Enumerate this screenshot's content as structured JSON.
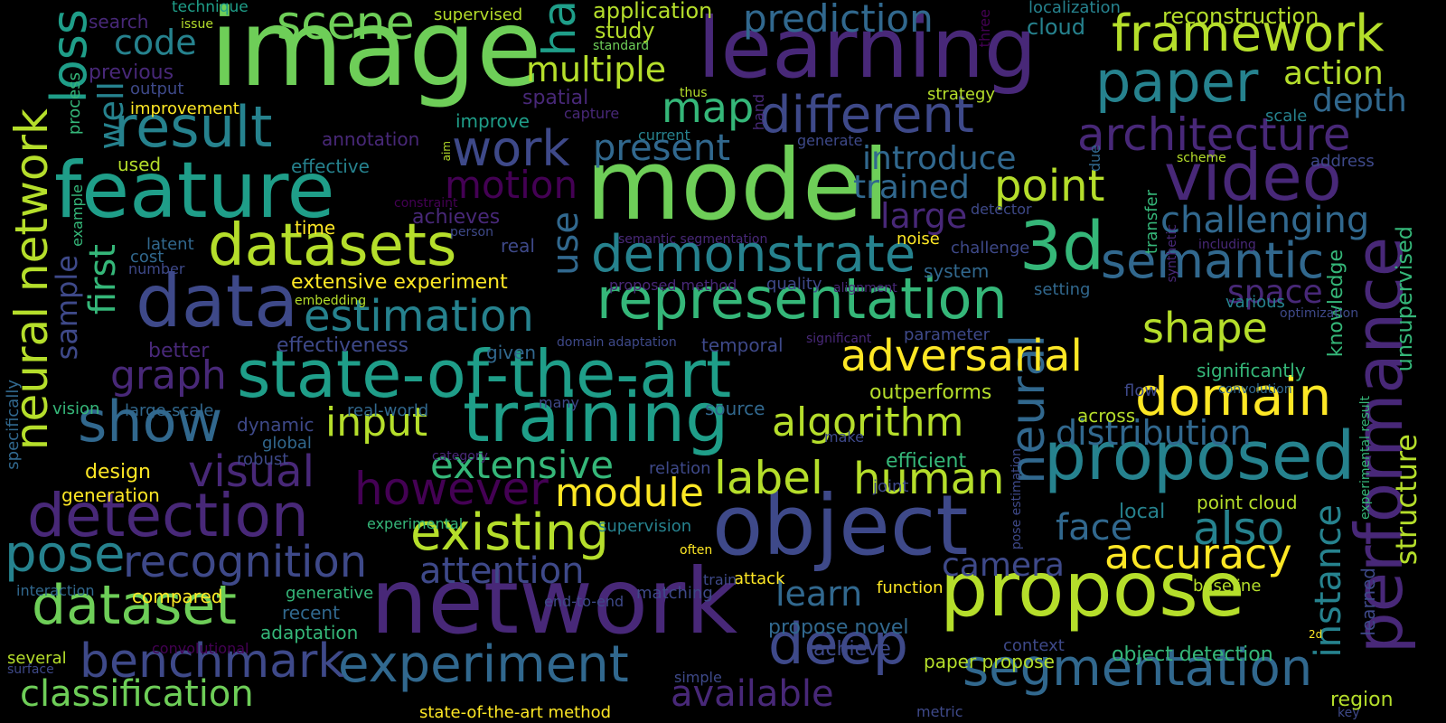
{
  "background": "#000000",
  "palette": [
    "#440154",
    "#482878",
    "#3e4989",
    "#31688e",
    "#26828e",
    "#1f9e89",
    "#35b779",
    "#6ece58",
    "#b5de2b",
    "#fde725"
  ],
  "words": [
    {
      "id": "image",
      "text": "image",
      "color": "#6ece58"
    },
    {
      "id": "model",
      "text": "model",
      "color": "#6ece58"
    },
    {
      "id": "learning",
      "text": "learning",
      "color": "#482878"
    },
    {
      "id": "network",
      "text": "network",
      "color": "#482878"
    },
    {
      "id": "feature",
      "text": "feature",
      "color": "#1f9e89"
    },
    {
      "id": "object",
      "text": "object",
      "color": "#3e4989"
    },
    {
      "id": "propose",
      "text": "propose",
      "color": "#b5de2b"
    },
    {
      "id": "performance",
      "text": "performance",
      "color": "#482878"
    },
    {
      "id": "video",
      "text": "video",
      "color": "#482878"
    },
    {
      "id": "data",
      "text": "data",
      "color": "#3e4989"
    },
    {
      "id": "state-of-the-art",
      "text": "state-of-the-art",
      "color": "#1f9e89"
    },
    {
      "id": "training",
      "text": "training",
      "color": "#1f9e89"
    },
    {
      "id": "representation",
      "text": "representation",
      "color": "#35b779"
    },
    {
      "id": "detection",
      "text": "detection",
      "color": "#482878"
    },
    {
      "id": "datasets",
      "text": "datasets",
      "color": "#b5de2b"
    },
    {
      "id": "proposed",
      "text": "proposed",
      "color": "#26828e"
    },
    {
      "id": "3d",
      "text": "3d",
      "color": "#35b779"
    },
    {
      "id": "segmentation",
      "text": "segmentation",
      "color": "#31688e"
    },
    {
      "id": "experiment",
      "text": "experiment",
      "color": "#31688e"
    },
    {
      "id": "deep",
      "text": "deep",
      "color": "#3e4989"
    },
    {
      "id": "domain",
      "text": "domain",
      "color": "#fde725"
    },
    {
      "id": "demonstrate",
      "text": "demonstrate",
      "color": "#26828e"
    },
    {
      "id": "show",
      "text": "show",
      "color": "#31688e"
    },
    {
      "id": "result",
      "text": "result",
      "color": "#26828e"
    },
    {
      "id": "paper",
      "text": "paper",
      "color": "#26828e"
    },
    {
      "id": "dataset",
      "text": "dataset",
      "color": "#6ece58"
    },
    {
      "id": "scene",
      "text": "scene",
      "color": "#6ece58"
    },
    {
      "id": "framework",
      "text": "framework",
      "color": "#b5de2b"
    },
    {
      "id": "different",
      "text": "different",
      "color": "#3e4989"
    },
    {
      "id": "semantic",
      "text": "semantic",
      "color": "#31688e"
    },
    {
      "id": "neural-network",
      "text": "neural network",
      "color": "#b5de2b"
    },
    {
      "id": "neural",
      "text": "neural",
      "color": "#31688e"
    },
    {
      "id": "existing",
      "text": "existing",
      "color": "#b5de2b"
    },
    {
      "id": "pose",
      "text": "pose",
      "color": "#26828e"
    },
    {
      "id": "recognition",
      "text": "recognition",
      "color": "#3e4989"
    },
    {
      "id": "adversarial",
      "text": "adversarial",
      "color": "#fde725"
    },
    {
      "id": "benchmark",
      "text": "benchmark",
      "color": "#3e4989"
    },
    {
      "id": "architecture",
      "text": "architecture",
      "color": "#482878"
    },
    {
      "id": "estimation",
      "text": "estimation",
      "color": "#26828e"
    },
    {
      "id": "algorithm",
      "text": "algorithm",
      "color": "#b5de2b"
    },
    {
      "id": "human",
      "text": "human",
      "color": "#b5de2b"
    },
    {
      "id": "visual",
      "text": "visual",
      "color": "#482878"
    },
    {
      "id": "however",
      "text": "however",
      "color": "#440154"
    },
    {
      "id": "work",
      "text": "work",
      "color": "#3e4989"
    },
    {
      "id": "accuracy",
      "text": "accuracy",
      "color": "#fde725"
    },
    {
      "id": "classification",
      "text": "classification",
      "color": "#6ece58"
    },
    {
      "id": "challenging",
      "text": "challenging",
      "color": "#31688e"
    },
    {
      "id": "loss",
      "text": "loss",
      "color": "#1f9e89"
    },
    {
      "id": "prediction",
      "text": "prediction",
      "color": "#31688e"
    },
    {
      "id": "point",
      "text": "point",
      "color": "#b5de2b"
    },
    {
      "id": "shape",
      "text": "shape",
      "color": "#b5de2b"
    },
    {
      "id": "input",
      "text": "input",
      "color": "#b5de2b"
    },
    {
      "id": "label",
      "text": "label",
      "color": "#b5de2b"
    },
    {
      "id": "module",
      "text": "module",
      "color": "#fde725"
    },
    {
      "id": "extensive",
      "text": "extensive",
      "color": "#35b779"
    },
    {
      "id": "attention",
      "text": "attention",
      "color": "#3e4989"
    },
    {
      "id": "available",
      "text": "available",
      "color": "#482878"
    },
    {
      "id": "distribution",
      "text": "distribution",
      "color": "#31688e"
    },
    {
      "id": "instance",
      "text": "instance",
      "color": "#26828e"
    },
    {
      "id": "also",
      "text": "also",
      "color": "#26828e"
    },
    {
      "id": "face",
      "text": "face",
      "color": "#31688e"
    },
    {
      "id": "structure",
      "text": "structure",
      "color": "#b5de2b"
    },
    {
      "id": "unsupervised",
      "text": "unsupervised",
      "color": "#35b779"
    },
    {
      "id": "first",
      "text": "first",
      "color": "#35b779"
    },
    {
      "id": "ha",
      "text": "ha",
      "color": "#1f9e89"
    },
    {
      "id": "code",
      "text": "code",
      "color": "#26828e"
    },
    {
      "id": "multiple",
      "text": "multiple",
      "color": "#b5de2b"
    },
    {
      "id": "map",
      "text": "map",
      "color": "#35b779"
    },
    {
      "id": "present",
      "text": "present",
      "color": "#31688e"
    },
    {
      "id": "motion",
      "text": "motion",
      "color": "#440154"
    },
    {
      "id": "introduce",
      "text": "introduce",
      "color": "#31688e"
    },
    {
      "id": "trained",
      "text": "trained",
      "color": "#31688e"
    },
    {
      "id": "large",
      "text": "large",
      "color": "#482878"
    },
    {
      "id": "graph",
      "text": "graph",
      "color": "#482878"
    },
    {
      "id": "learn",
      "text": "learn",
      "color": "#31688e"
    },
    {
      "id": "camera",
      "text": "camera",
      "color": "#3e4989"
    },
    {
      "id": "space",
      "text": "space",
      "color": "#482878"
    },
    {
      "id": "depth",
      "text": "depth",
      "color": "#31688e"
    },
    {
      "id": "action",
      "text": "action",
      "color": "#b5de2b"
    },
    {
      "id": "well",
      "text": "well",
      "color": "#26828e"
    },
    {
      "id": "sample",
      "text": "sample",
      "color": "#3e4989"
    },
    {
      "id": "use",
      "text": "use",
      "color": "#31688e"
    },
    {
      "id": "application",
      "text": "application",
      "color": "#b5de2b"
    },
    {
      "id": "study",
      "text": "study",
      "color": "#b5de2b"
    },
    {
      "id": "reconstruction",
      "text": "reconstruction",
      "color": "#b5de2b"
    },
    {
      "id": "localization",
      "text": "localization",
      "color": "#26828e"
    },
    {
      "id": "cloud",
      "text": "cloud",
      "color": "#26828e"
    },
    {
      "id": "knowledge",
      "text": "knowledge",
      "color": "#35b779"
    },
    {
      "id": "supervised",
      "text": "supervised",
      "color": "#b5de2b"
    },
    {
      "id": "technique",
      "text": "technique",
      "color": "#1f9e89"
    },
    {
      "id": "search",
      "text": "search",
      "color": "#482878"
    },
    {
      "id": "issue",
      "text": "issue",
      "color": "#b5de2b"
    },
    {
      "id": "previous",
      "text": "previous",
      "color": "#482878"
    },
    {
      "id": "output",
      "text": "output",
      "color": "#3e4989"
    },
    {
      "id": "improvement",
      "text": "improvement",
      "color": "#fde725"
    },
    {
      "id": "process",
      "text": "process",
      "color": "#35b779"
    },
    {
      "id": "used",
      "text": "used",
      "color": "#b5de2b"
    },
    {
      "id": "effective",
      "text": "effective",
      "color": "#26828e"
    },
    {
      "id": "annotation",
      "text": "annotation",
      "color": "#482878"
    },
    {
      "id": "improve",
      "text": "improve",
      "color": "#1f9e89"
    },
    {
      "id": "capture",
      "text": "capture",
      "color": "#482878"
    },
    {
      "id": "spatial",
      "text": "spatial",
      "color": "#482878"
    },
    {
      "id": "standard",
      "text": "standard",
      "color": "#6ece58"
    },
    {
      "id": "thus",
      "text": "thus",
      "color": "#b5de2b"
    },
    {
      "id": "current",
      "text": "current",
      "color": "#26828e"
    },
    {
      "id": "three",
      "text": "three",
      "color": "#440154"
    },
    {
      "id": "hand",
      "text": "hand",
      "color": "#482878"
    },
    {
      "id": "generate",
      "text": "generate",
      "color": "#3e4989"
    },
    {
      "id": "strategy",
      "text": "strategy",
      "color": "#b5de2b"
    },
    {
      "id": "scale",
      "text": "scale",
      "color": "#26828e"
    },
    {
      "id": "address",
      "text": "address",
      "color": "#3e4989"
    },
    {
      "id": "scheme",
      "text": "scheme",
      "color": "#b5de2b"
    },
    {
      "id": "due",
      "text": "due",
      "color": "#31688e"
    },
    {
      "id": "aim",
      "text": "aim",
      "color": "#b5de2b"
    },
    {
      "id": "constraint",
      "text": "constraint",
      "color": "#440154"
    },
    {
      "id": "achieves",
      "text": "achieves",
      "color": "#482878"
    },
    {
      "id": "time",
      "text": "time",
      "color": "#fde725"
    },
    {
      "id": "latent",
      "text": "latent",
      "color": "#31688e"
    },
    {
      "id": "cost",
      "text": "cost",
      "color": "#31688e"
    },
    {
      "id": "number",
      "text": "number",
      "color": "#3e4989"
    },
    {
      "id": "example",
      "text": "example",
      "color": "#35b779"
    },
    {
      "id": "person",
      "text": "person",
      "color": "#3e4989"
    },
    {
      "id": "real",
      "text": "real",
      "color": "#3e4989"
    },
    {
      "id": "semantic-segmentation",
      "text": "semantic segmentation",
      "color": "#482878"
    },
    {
      "id": "noise",
      "text": "noise",
      "color": "#fde725"
    },
    {
      "id": "system",
      "text": "system",
      "color": "#31688e"
    },
    {
      "id": "challenge",
      "text": "challenge",
      "color": "#3e4989"
    },
    {
      "id": "detector",
      "text": "detector",
      "color": "#3e4989"
    },
    {
      "id": "transfer",
      "text": "transfer",
      "color": "#35b779"
    },
    {
      "id": "synthetic",
      "text": "synthetic",
      "color": "#482878"
    },
    {
      "id": "including",
      "text": "including",
      "color": "#482878"
    },
    {
      "id": "extensive-experiment",
      "text": "extensive experiment",
      "color": "#fde725"
    },
    {
      "id": "embedding",
      "text": "embedding",
      "color": "#b5de2b"
    },
    {
      "id": "proposed-method",
      "text": "proposed method",
      "color": "#482878"
    },
    {
      "id": "quality",
      "text": "quality",
      "color": "#3e4989"
    },
    {
      "id": "alignment",
      "text": "alignment",
      "color": "#482878"
    },
    {
      "id": "setting",
      "text": "setting",
      "color": "#31688e"
    },
    {
      "id": "various",
      "text": "various",
      "color": "#26828e"
    },
    {
      "id": "optimization",
      "text": "optimization",
      "color": "#3e4989"
    },
    {
      "id": "better",
      "text": "better",
      "color": "#482878"
    },
    {
      "id": "effectiveness",
      "text": "effectiveness",
      "color": "#3e4989"
    },
    {
      "id": "given",
      "text": "given",
      "color": "#31688e"
    },
    {
      "id": "domain-adaptation",
      "text": "domain adaptation",
      "color": "#3e4989"
    },
    {
      "id": "temporal",
      "text": "temporal",
      "color": "#3e4989"
    },
    {
      "id": "significant",
      "text": "significant",
      "color": "#482878"
    },
    {
      "id": "parameter",
      "text": "parameter",
      "color": "#3e4989"
    },
    {
      "id": "significantly",
      "text": "significantly",
      "color": "#35b779"
    },
    {
      "id": "specifically",
      "text": "specifically",
      "color": "#31688e"
    },
    {
      "id": "vision",
      "text": "vision",
      "color": "#35b779"
    },
    {
      "id": "large-scale",
      "text": "large-scale",
      "color": "#31688e"
    },
    {
      "id": "real-world",
      "text": "real-world",
      "color": "#31688e"
    },
    {
      "id": "many",
      "text": "many",
      "color": "#3e4989"
    },
    {
      "id": "outperforms",
      "text": "outperforms",
      "color": "#b5de2b"
    },
    {
      "id": "source",
      "text": "source",
      "color": "#31688e"
    },
    {
      "id": "flow",
      "text": "flow",
      "color": "#3e4989"
    },
    {
      "id": "across",
      "text": "across",
      "color": "#b5de2b"
    },
    {
      "id": "convolution",
      "text": "convolution",
      "color": "#31688e"
    },
    {
      "id": "dynamic",
      "text": "dynamic",
      "color": "#3e4989"
    },
    {
      "id": "global",
      "text": "global",
      "color": "#31688e"
    },
    {
      "id": "robust",
      "text": "robust",
      "color": "#3e4989"
    },
    {
      "id": "category",
      "text": "category",
      "color": "#482878"
    },
    {
      "id": "design",
      "text": "design",
      "color": "#fde725"
    },
    {
      "id": "generation",
      "text": "generation",
      "color": "#fde725"
    },
    {
      "id": "make",
      "text": "make",
      "color": "#3e4989"
    },
    {
      "id": "relation",
      "text": "relation",
      "color": "#3e4989"
    },
    {
      "id": "efficient",
      "text": "efficient",
      "color": "#35b779"
    },
    {
      "id": "joint",
      "text": "joint",
      "color": "#3e4989"
    },
    {
      "id": "experimental-result",
      "text": "experimental result",
      "color": "#35b779"
    },
    {
      "id": "pose-estimation",
      "text": "pose estimation",
      "color": "#3e4989"
    },
    {
      "id": "experimental",
      "text": "experimental",
      "color": "#35b779"
    },
    {
      "id": "supervision",
      "text": "supervision",
      "color": "#26828e"
    },
    {
      "id": "often",
      "text": "often",
      "color": "#fde725"
    },
    {
      "id": "local",
      "text": "local",
      "color": "#26828e"
    },
    {
      "id": "point-cloud",
      "text": "point cloud",
      "color": "#b5de2b"
    },
    {
      "id": "attack",
      "text": "attack",
      "color": "#fde725"
    },
    {
      "id": "train",
      "text": "train",
      "color": "#3e4989"
    },
    {
      "id": "matching",
      "text": "matching",
      "color": "#3e4989"
    },
    {
      "id": "function",
      "text": "function",
      "color": "#fde725"
    },
    {
      "id": "baseline",
      "text": "baseline",
      "color": "#b5de2b"
    },
    {
      "id": "learned",
      "text": "learned",
      "color": "#3e4989"
    },
    {
      "id": "interaction",
      "text": "interaction",
      "color": "#31688e"
    },
    {
      "id": "compared",
      "text": "compared",
      "color": "#fde725"
    },
    {
      "id": "generative",
      "text": "generative",
      "color": "#35b779"
    },
    {
      "id": "recent",
      "text": "recent",
      "color": "#31688e"
    },
    {
      "id": "end-to-end",
      "text": "end-to-end",
      "color": "#3e4989"
    },
    {
      "id": "adaptation",
      "text": "adaptation",
      "color": "#35b779"
    },
    {
      "id": "convolutional",
      "text": "convolutional",
      "color": "#440154"
    },
    {
      "id": "propose-novel",
      "text": "propose novel",
      "color": "#31688e"
    },
    {
      "id": "achieve",
      "text": "achieve",
      "color": "#3e4989"
    },
    {
      "id": "context",
      "text": "context",
      "color": "#3e4989"
    },
    {
      "id": "2d",
      "text": "2d",
      "color": "#fde725"
    },
    {
      "id": "several",
      "text": "several",
      "color": "#b5de2b"
    },
    {
      "id": "surface",
      "text": "surface",
      "color": "#3e4989"
    },
    {
      "id": "paper-propose",
      "text": "paper propose",
      "color": "#b5de2b"
    },
    {
      "id": "object-detection",
      "text": "object detection",
      "color": "#35b779"
    },
    {
      "id": "simple",
      "text": "simple",
      "color": "#3e4989"
    },
    {
      "id": "region",
      "text": "region",
      "color": "#b5de2b"
    },
    {
      "id": "state-of-the-art-method",
      "text": "state-of-the-art method",
      "color": "#fde725"
    },
    {
      "id": "metric",
      "text": "metric",
      "color": "#3e4989"
    },
    {
      "id": "key",
      "text": "key",
      "color": "#3e4989"
    }
  ]
}
